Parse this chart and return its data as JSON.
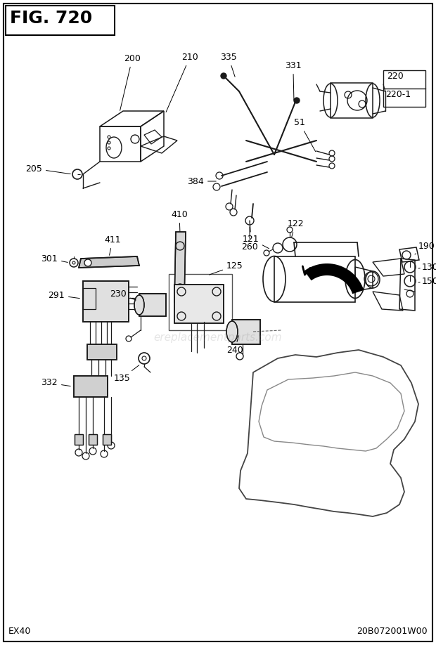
{
  "title": "FIG. 720",
  "bottom_left": "EX40",
  "bottom_right": "20B072001W00",
  "bg_color": "#ffffff",
  "border_color": "#000000",
  "text_color": "#000000",
  "title_fontsize": 18,
  "label_fontsize": 9,
  "fig_width": 6.2,
  "fig_height": 9.18,
  "watermark": "ereplacementparts.com",
  "lc": "#1a1a1a"
}
